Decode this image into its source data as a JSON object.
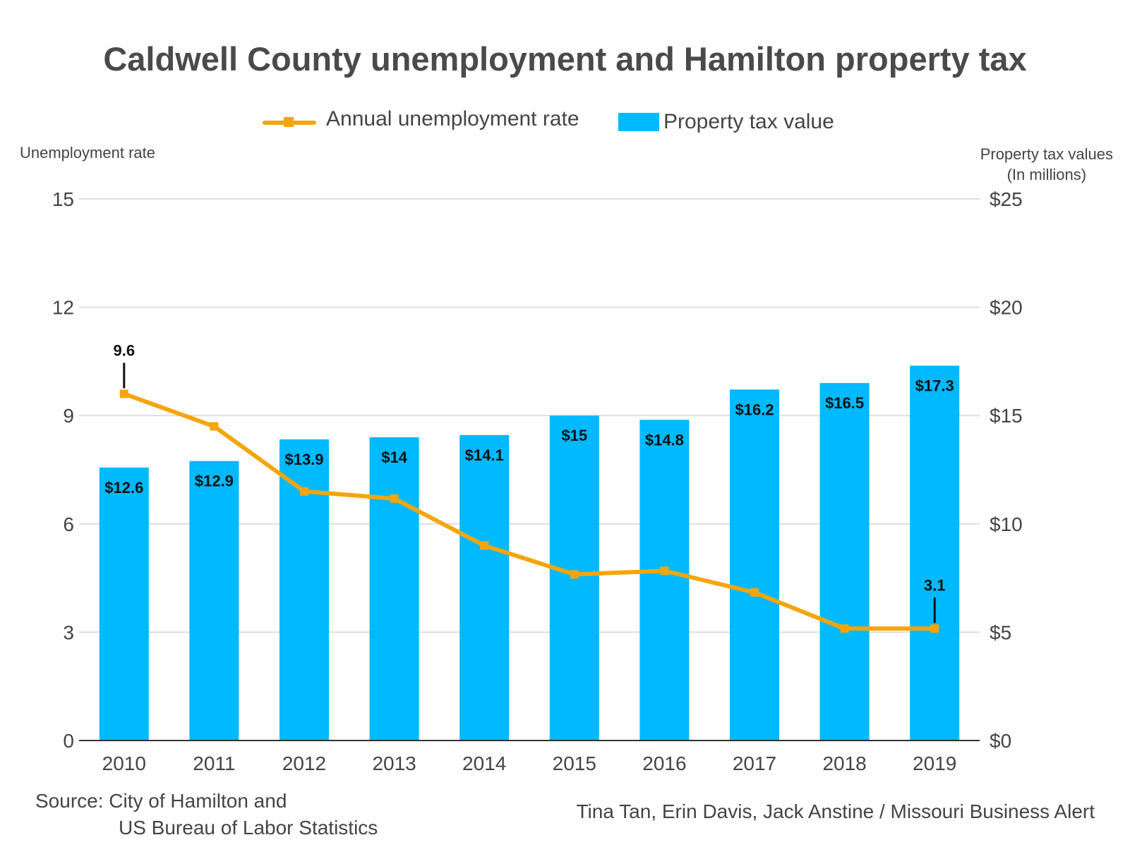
{
  "chart_data": {
    "type": "bar",
    "title": "Caldwell County unemployment and Hamilton property tax",
    "categories": [
      "2010",
      "2011",
      "2012",
      "2013",
      "2014",
      "2015",
      "2016",
      "2017",
      "2018",
      "2019"
    ],
    "series": [
      {
        "name": "Property tax value",
        "type": "bar",
        "axis": "right",
        "values": [
          12.6,
          12.9,
          13.9,
          14,
          14.1,
          15,
          14.8,
          16.2,
          16.5,
          17.3
        ],
        "labels": [
          "$12.6",
          "$12.9",
          "$13.9",
          "$14",
          "$14.1",
          "$15",
          "$14.8",
          "$16.2",
          "$16.5",
          "$17.3"
        ],
        "color": "#00b9ff"
      },
      {
        "name": "Annual unemployment rate",
        "type": "line",
        "axis": "left",
        "values": [
          9.6,
          8.7,
          6.9,
          6.7,
          5.4,
          4.6,
          4.7,
          4.1,
          3.1,
          3.1
        ],
        "color": "#f5a50c"
      }
    ],
    "annotations": [
      {
        "category": "2010",
        "text": "9.6"
      },
      {
        "category": "2019",
        "text": "3.1"
      }
    ],
    "y_left": {
      "label": "Unemployment rate",
      "range": [
        0,
        15
      ],
      "ticks": [
        0,
        3,
        6,
        9,
        12,
        15
      ],
      "tick_labels": [
        "0",
        "3",
        "6",
        "9",
        "12",
        "15"
      ]
    },
    "y_right": {
      "label_line1": "Property tax values",
      "label_line2": "(In millions)",
      "range": [
        0,
        25
      ],
      "ticks": [
        0,
        5,
        10,
        15,
        20,
        25
      ],
      "tick_labels": [
        "$0",
        "$5",
        "$10",
        "$15",
        "$20",
        "$25"
      ]
    },
    "grid": true,
    "legend_position": "top-center"
  },
  "footer": {
    "source_line1": "Source: City of Hamilton and",
    "source_line2": "US Bureau of Labor Statistics",
    "credit": "Tina Tan, Erin Davis, Jack Anstine / Missouri Business Alert"
  }
}
